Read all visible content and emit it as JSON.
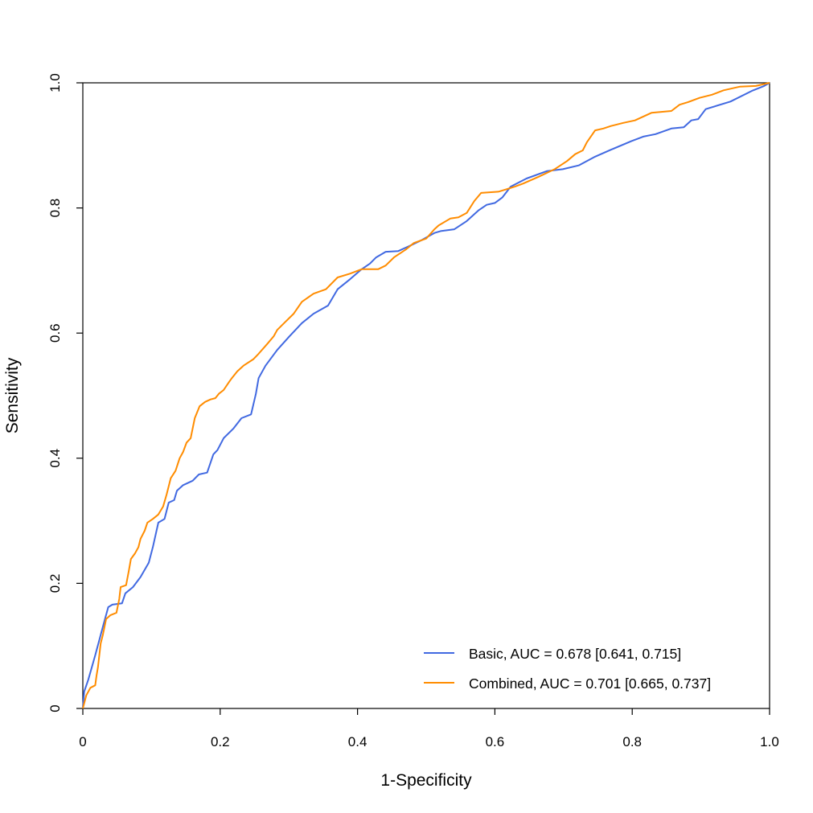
{
  "chart_data": {
    "type": "line",
    "title": "",
    "xlabel": "1-Specificity",
    "ylabel": "Sensitivity",
    "xlim": [
      0,
      1
    ],
    "ylim": [
      0,
      1
    ],
    "grid": false,
    "legend_position": "bottom-right",
    "x_ticks": [
      {
        "value": 0,
        "label": "0"
      },
      {
        "value": 0.2,
        "label": "0.2"
      },
      {
        "value": 0.4,
        "label": "0.4"
      },
      {
        "value": 0.6,
        "label": "0.6"
      },
      {
        "value": 0.8,
        "label": "0.8"
      },
      {
        "value": 1.0,
        "label": "1.0"
      }
    ],
    "y_ticks": [
      {
        "value": 0,
        "label": "0"
      },
      {
        "value": 0.2,
        "label": "0.2"
      },
      {
        "value": 0.4,
        "label": "0.4"
      },
      {
        "value": 0.6,
        "label": "0.6"
      },
      {
        "value": 0.8,
        "label": "0.8"
      },
      {
        "value": 1.0,
        "label": "1.0"
      }
    ],
    "series": [
      {
        "name": "Basic, AUC = 0.678 [0.641, 0.715]",
        "color": "#4169E1",
        "x": [
          0,
          0.002,
          0.008,
          0.018,
          0.029,
          0.037,
          0.043,
          0.057,
          0.062,
          0.073,
          0.084,
          0.096,
          0.102,
          0.11,
          0.119,
          0.125,
          0.133,
          0.137,
          0.146,
          0.16,
          0.169,
          0.181,
          0.19,
          0.196,
          0.205,
          0.219,
          0.231,
          0.245,
          0.252,
          0.256,
          0.266,
          0.283,
          0.301,
          0.319,
          0.336,
          0.357,
          0.371,
          0.389,
          0.406,
          0.418,
          0.427,
          0.441,
          0.459,
          0.477,
          0.494,
          0.512,
          0.521,
          0.541,
          0.559,
          0.576,
          0.588,
          0.6,
          0.611,
          0.623,
          0.646,
          0.676,
          0.699,
          0.722,
          0.746,
          0.769,
          0.799,
          0.816,
          0.834,
          0.857,
          0.875,
          0.886,
          0.896,
          0.907,
          0.943,
          0.974,
          0.992,
          1
        ],
        "y": [
          0,
          0.027,
          0.046,
          0.085,
          0.13,
          0.162,
          0.166,
          0.168,
          0.184,
          0.194,
          0.21,
          0.233,
          0.258,
          0.297,
          0.303,
          0.329,
          0.333,
          0.348,
          0.357,
          0.364,
          0.374,
          0.377,
          0.406,
          0.413,
          0.432,
          0.447,
          0.464,
          0.47,
          0.503,
          0.528,
          0.548,
          0.573,
          0.595,
          0.616,
          0.631,
          0.644,
          0.67,
          0.686,
          0.702,
          0.711,
          0.721,
          0.73,
          0.731,
          0.74,
          0.749,
          0.76,
          0.763,
          0.766,
          0.779,
          0.796,
          0.805,
          0.808,
          0.817,
          0.834,
          0.847,
          0.859,
          0.862,
          0.868,
          0.882,
          0.893,
          0.907,
          0.914,
          0.918,
          0.927,
          0.929,
          0.94,
          0.942,
          0.958,
          0.97,
          0.987,
          0.995,
          1
        ]
      },
      {
        "name": "Combined, AUC = 0.701 [0.665, 0.737]",
        "color": "#FF8C00",
        "x": [
          0,
          0.005,
          0.011,
          0.018,
          0.02,
          0.022,
          0.026,
          0.029,
          0.034,
          0.04,
          0.049,
          0.053,
          0.055,
          0.063,
          0.067,
          0.07,
          0.076,
          0.081,
          0.084,
          0.09,
          0.094,
          0.102,
          0.11,
          0.117,
          0.122,
          0.128,
          0.135,
          0.141,
          0.146,
          0.151,
          0.157,
          0.163,
          0.17,
          0.178,
          0.186,
          0.193,
          0.198,
          0.205,
          0.213,
          0.217,
          0.225,
          0.234,
          0.248,
          0.256,
          0.268,
          0.278,
          0.283,
          0.295,
          0.307,
          0.319,
          0.336,
          0.354,
          0.371,
          0.389,
          0.406,
          0.43,
          0.441,
          0.453,
          0.471,
          0.482,
          0.5,
          0.512,
          0.518,
          0.535,
          0.547,
          0.559,
          0.57,
          0.58,
          0.605,
          0.617,
          0.629,
          0.641,
          0.664,
          0.687,
          0.705,
          0.717,
          0.728,
          0.734,
          0.746,
          0.758,
          0.769,
          0.787,
          0.804,
          0.828,
          0.857,
          0.869,
          0.881,
          0.898,
          0.916,
          0.933,
          0.957,
          0.98,
          1
        ],
        "y": [
          0,
          0.021,
          0.033,
          0.037,
          0.053,
          0.066,
          0.104,
          0.117,
          0.143,
          0.149,
          0.153,
          0.175,
          0.194,
          0.197,
          0.22,
          0.239,
          0.248,
          0.258,
          0.271,
          0.284,
          0.297,
          0.303,
          0.31,
          0.323,
          0.342,
          0.368,
          0.38,
          0.4,
          0.41,
          0.425,
          0.432,
          0.464,
          0.483,
          0.49,
          0.494,
          0.496,
          0.503,
          0.509,
          0.522,
          0.528,
          0.539,
          0.548,
          0.558,
          0.567,
          0.582,
          0.595,
          0.605,
          0.618,
          0.631,
          0.65,
          0.663,
          0.67,
          0.689,
          0.695,
          0.702,
          0.702,
          0.708,
          0.721,
          0.734,
          0.744,
          0.751,
          0.766,
          0.772,
          0.783,
          0.785,
          0.792,
          0.811,
          0.824,
          0.826,
          0.83,
          0.834,
          0.839,
          0.85,
          0.862,
          0.875,
          0.886,
          0.892,
          0.905,
          0.924,
          0.927,
          0.931,
          0.936,
          0.94,
          0.952,
          0.955,
          0.965,
          0.969,
          0.976,
          0.981,
          0.988,
          0.994,
          0.995,
          1
        ]
      }
    ]
  }
}
